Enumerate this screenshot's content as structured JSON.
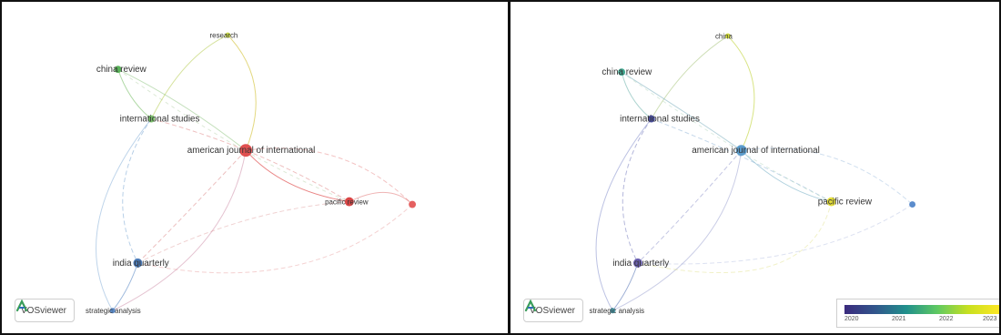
{
  "left_panel": {
    "nodes": [
      {
        "id": "research",
        "label": "research",
        "color": "#c9d94a"
      },
      {
        "id": "china_review",
        "label": "china review",
        "color": "#5ab35a"
      },
      {
        "id": "intl_studies",
        "label": "international studies",
        "color": "#7bc26b"
      },
      {
        "id": "american_journal",
        "label": "american journal of international",
        "color": "#e05050"
      },
      {
        "id": "pacific_review",
        "label": "pacific review",
        "color": "#d94545"
      },
      {
        "id": "right_node",
        "label": "",
        "color": "#e56060"
      },
      {
        "id": "india_quarterly",
        "label": "india quarterly",
        "color": "#4a7ab8"
      },
      {
        "id": "strategic_analysis",
        "label": "strategic analysis",
        "color": "#5a88c4"
      }
    ],
    "watermark": "VOSviewer"
  },
  "right_panel": {
    "nodes": [
      {
        "id": "china",
        "label": "china",
        "color": "#d4de3a"
      },
      {
        "id": "china_review",
        "label": "china review",
        "color": "#3fa890"
      },
      {
        "id": "intl_studies",
        "label": "international studies",
        "color": "#4a4fa0"
      },
      {
        "id": "american_journal",
        "label": "american journal of international",
        "color": "#5b9ccc"
      },
      {
        "id": "pacific_review",
        "label": "pacific review",
        "color": "#e4de3c"
      },
      {
        "id": "right_node",
        "label": "",
        "color": "#5b8ccc"
      },
      {
        "id": "india_quarterly",
        "label": "india quarterly",
        "color": "#6a5fb0"
      },
      {
        "id": "strategic_analysis",
        "label": "strategic analysis",
        "color": "#4aa0b0"
      }
    ],
    "watermark": "VOSviewer",
    "legend": {
      "ticks": [
        "2020",
        "2021",
        "2022",
        "2023"
      ],
      "gradient": [
        "#3b2a7d",
        "#31568c",
        "#21908c",
        "#5ec962",
        "#c8e020",
        "#fde725"
      ]
    }
  }
}
